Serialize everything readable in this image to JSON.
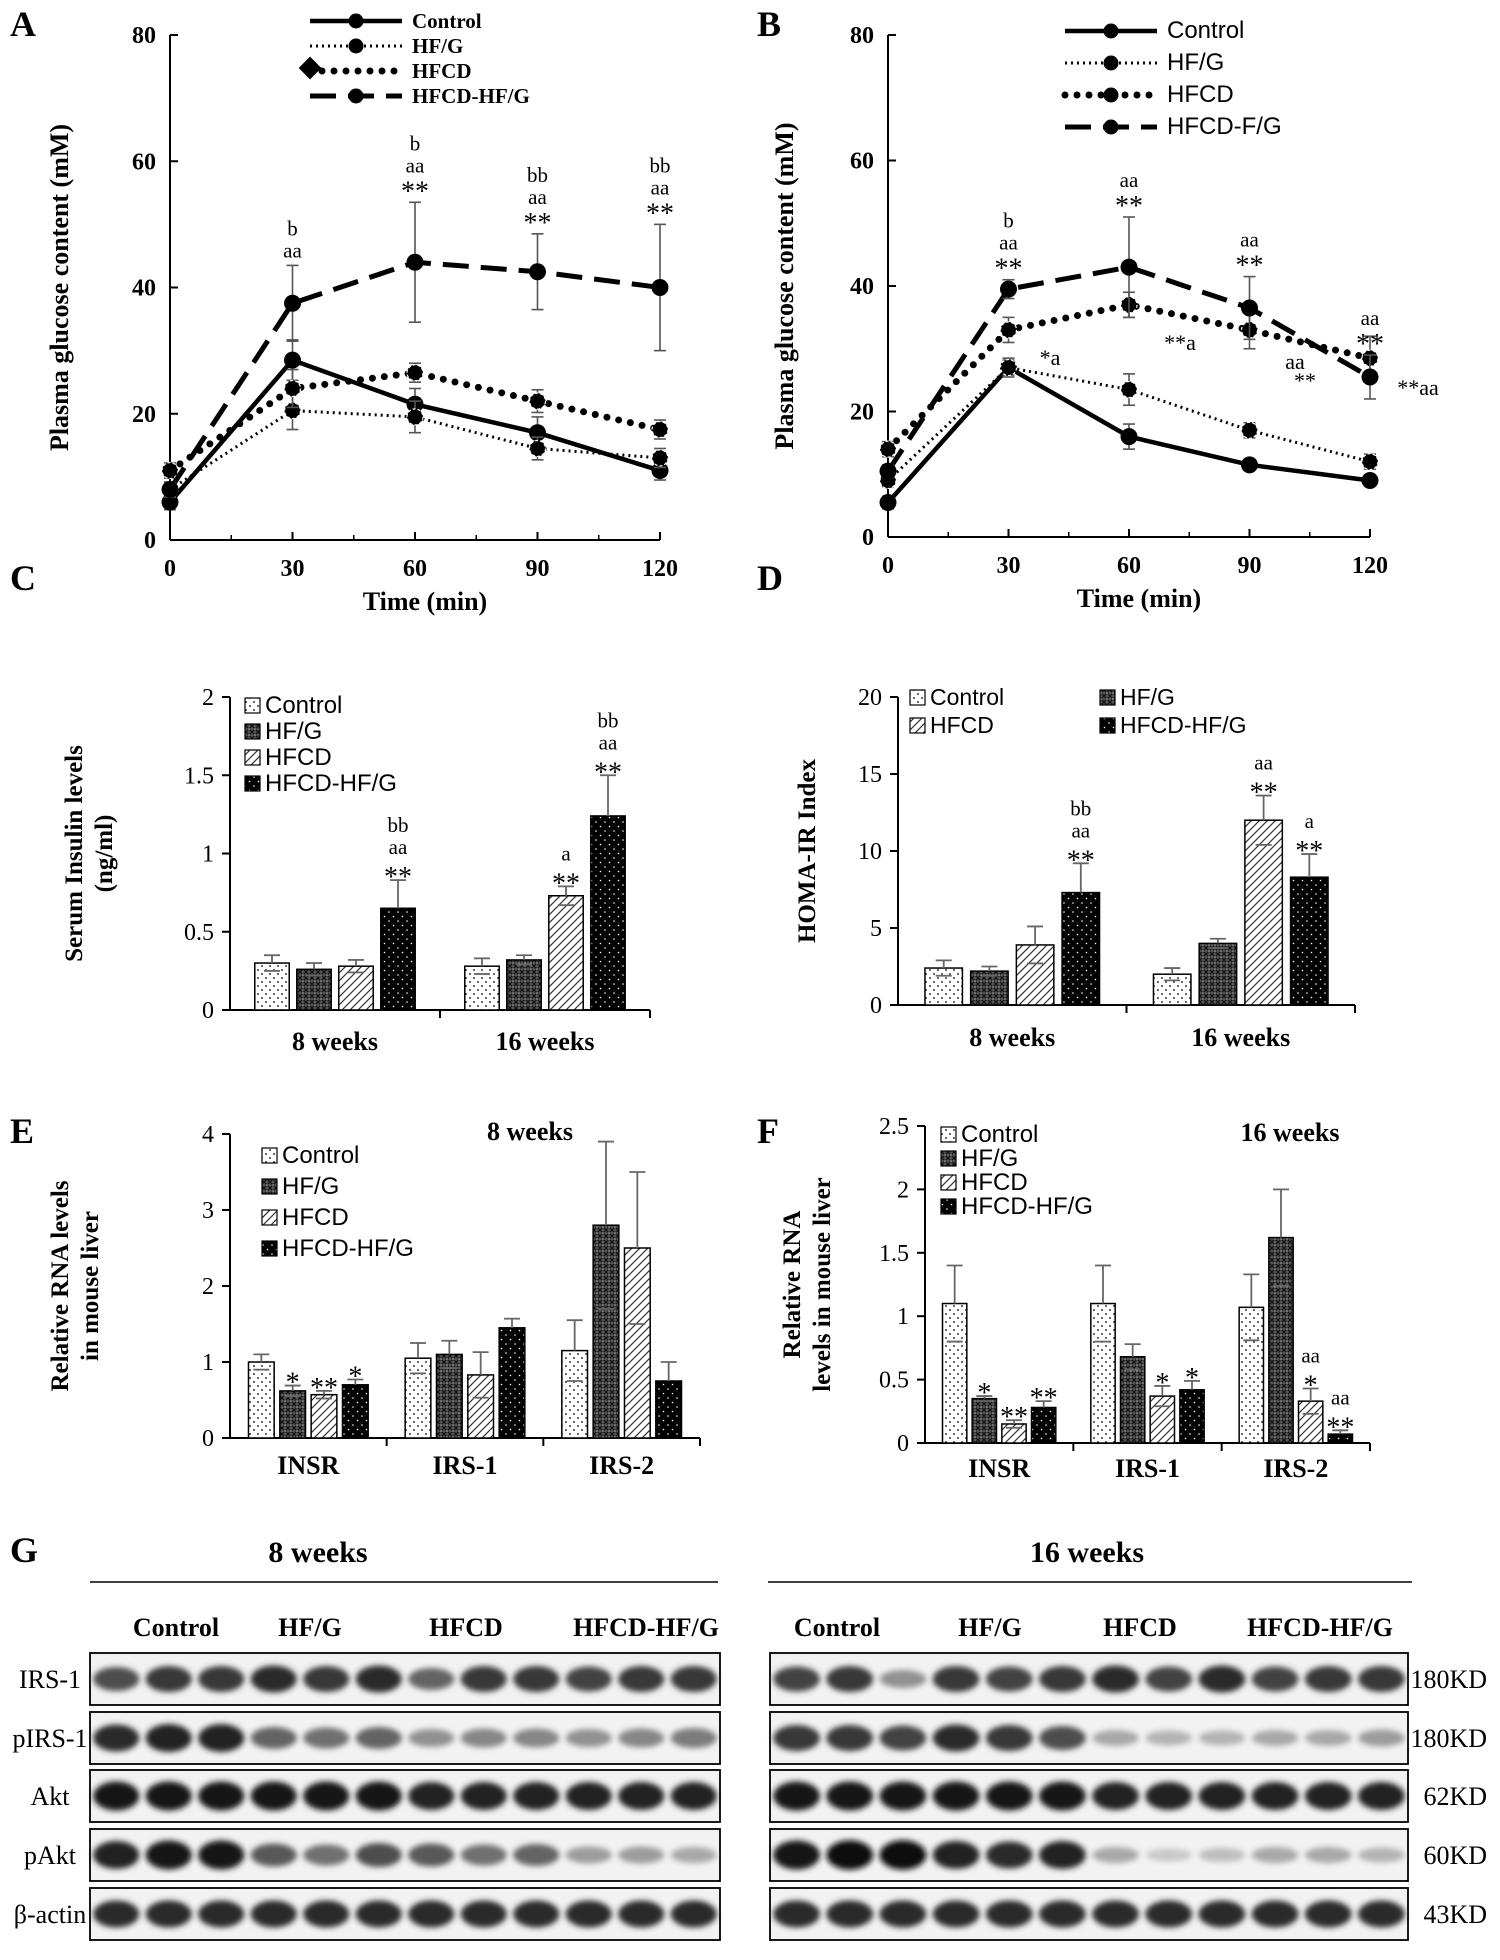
{
  "panel_letters": [
    "A",
    "B",
    "C",
    "D",
    "E",
    "F",
    "G"
  ],
  "chart_data": [
    {
      "panel": "A",
      "type": "line",
      "ylabel": "Plasma glucose content  (mM)",
      "xlabel": "Time (min)",
      "x": [
        0,
        30,
        60,
        90,
        120
      ],
      "xlim": [
        0,
        120
      ],
      "ylim": [
        0,
        80
      ],
      "yticks": [
        0,
        20,
        40,
        60,
        80
      ],
      "legend_position": "top-right",
      "series": [
        {
          "name": "Control",
          "values": [
            6,
            28.5,
            21.5,
            17,
            11
          ],
          "err": [
            1.2,
            3.2,
            2.5,
            2.5,
            1.5
          ],
          "style": "solid"
        },
        {
          "name": "HF/G",
          "values": [
            8,
            20.5,
            19.5,
            14.5,
            13
          ],
          "err": [
            1.2,
            3,
            2.5,
            1.8,
            1.5
          ],
          "style": "dotted"
        },
        {
          "name": "HFCD",
          "values": [
            11,
            24,
            26.5,
            22,
            17.5
          ],
          "err": [
            1.2,
            3,
            1.5,
            1.8,
            1.5
          ],
          "style": "dots"
        },
        {
          "name": "HFCD-HF/G",
          "values": [
            8,
            37.5,
            44,
            42.5,
            40
          ],
          "err": [
            1,
            6,
            9.5,
            6,
            10
          ],
          "style": "dashed"
        }
      ],
      "annotations": [
        {
          "x": 30,
          "lines": [
            "b",
            "aa"
          ]
        },
        {
          "x": 60,
          "lines": [
            "b",
            "aa",
            "**"
          ]
        },
        {
          "x": 90,
          "lines": [
            "bb",
            "aa",
            "**"
          ]
        },
        {
          "x": 120,
          "lines": [
            "bb",
            "aa",
            "**"
          ]
        }
      ]
    },
    {
      "panel": "B",
      "type": "line",
      "ylabel": "Plasma glucose content  (mM)",
      "xlabel": "Time  (min)",
      "x": [
        0,
        30,
        60,
        90,
        120
      ],
      "xlim": [
        0,
        120
      ],
      "ylim": [
        0,
        80
      ],
      "yticks": [
        0,
        20,
        40,
        60,
        80
      ],
      "legend_position": "top-right",
      "series": [
        {
          "name": "Control",
          "values": [
            5.5,
            27,
            16,
            11.5,
            9
          ],
          "err": [
            1,
            1.5,
            2,
            0.8,
            0.8
          ],
          "style": "solid"
        },
        {
          "name": "HF/G",
          "values": [
            9,
            27,
            23.5,
            17,
            12
          ],
          "err": [
            1,
            1.2,
            2.5,
            1.2,
            1.2
          ],
          "style": "dotted"
        },
        {
          "name": "HFCD",
          "values": [
            14,
            33,
            37,
            33,
            28.5
          ],
          "err": [
            1.2,
            2,
            2,
            3,
            3.5
          ],
          "style": "dots"
        },
        {
          "name": "HFCD-F/G",
          "values": [
            10.5,
            39.5,
            43,
            36.5,
            25.5
          ],
          "err": [
            1,
            1.5,
            8,
            5,
            3.5
          ],
          "style": "dashed"
        }
      ],
      "annotations": [
        {
          "x": 30,
          "lines": [
            "b",
            "aa",
            "**"
          ]
        },
        {
          "x": 60,
          "lines": [
            "aa",
            "**"
          ]
        },
        {
          "x": 90,
          "lines": [
            "aa",
            "**"
          ]
        },
        {
          "x": 120,
          "lines": [
            "aa",
            "**"
          ]
        }
      ],
      "side_annotations": [
        "*a",
        "**a",
        "aa",
        "**",
        "**aa"
      ]
    },
    {
      "panel": "C",
      "type": "bar",
      "ylabel": "Serum Insulin levels\n(ng/ml)",
      "categories": [
        "8 weeks",
        "16 weeks"
      ],
      "ylim": [
        0,
        2
      ],
      "yticks": [
        "0",
        "0.5",
        "1",
        "1.5",
        "2"
      ],
      "legend_position": "top-left",
      "series": [
        {
          "name": "Control",
          "values": [
            0.3,
            0.28
          ],
          "err": [
            0.05,
            0.05
          ],
          "fill": "dots"
        },
        {
          "name": "HF/G",
          "values": [
            0.26,
            0.32
          ],
          "err": [
            0.04,
            0.03
          ],
          "fill": "cross"
        },
        {
          "name": "HFCD",
          "values": [
            0.28,
            0.73
          ],
          "err": [
            0.04,
            0.06
          ],
          "fill": "diag"
        },
        {
          "name": "HFCD-HF/G",
          "values": [
            0.65,
            1.24
          ],
          "err": [
            0.18,
            0.26
          ],
          "fill": "dark"
        }
      ],
      "annotations": [
        {
          "series": 3,
          "category": 0,
          "lines": [
            "bb",
            "aa",
            "**"
          ]
        },
        {
          "series": 2,
          "category": 1,
          "lines": [
            "a",
            "**"
          ]
        },
        {
          "series": 3,
          "category": 1,
          "lines": [
            "bb",
            "aa",
            "**"
          ]
        }
      ]
    },
    {
      "panel": "D",
      "type": "bar",
      "ylabel": "HOMA-IR Index",
      "categories": [
        "8 weeks",
        "16 weeks"
      ],
      "ylim": [
        0,
        20
      ],
      "yticks": [
        "0",
        "5",
        "10",
        "15",
        "20"
      ],
      "legend_position": "top",
      "series": [
        {
          "name": "Control",
          "values": [
            2.4,
            2
          ],
          "err": [
            0.5,
            0.4
          ],
          "fill": "dots"
        },
        {
          "name": "HF/G",
          "values": [
            2.2,
            4
          ],
          "err": [
            0.3,
            0.3
          ],
          "fill": "cross"
        },
        {
          "name": "HFCD",
          "values": [
            3.9,
            12
          ],
          "err": [
            1.2,
            1.6
          ],
          "fill": "diag"
        },
        {
          "name": "HFCD-HF/G",
          "values": [
            7.3,
            8.3
          ],
          "err": [
            1.9,
            1.5
          ],
          "fill": "dark"
        }
      ],
      "annotations": [
        {
          "series": 3,
          "category": 0,
          "lines": [
            "bb",
            "aa",
            "**"
          ]
        },
        {
          "series": 2,
          "category": 1,
          "lines": [
            "aa",
            "**"
          ]
        },
        {
          "series": 3,
          "category": 1,
          "lines": [
            "a",
            "**"
          ]
        }
      ]
    },
    {
      "panel": "E",
      "type": "bar",
      "title": "8 weeks",
      "ylabel": "Relative RNA levels\nin mouse liver",
      "categories": [
        "INSR",
        "IRS-1",
        "IRS-2"
      ],
      "ylim": [
        0,
        4
      ],
      "yticks": [
        "0",
        "1",
        "2",
        "3",
        "4"
      ],
      "legend_position": "top-left",
      "series": [
        {
          "name": "Control",
          "values": [
            1,
            1.05,
            1.15
          ],
          "err": [
            0.1,
            0.2,
            0.4
          ],
          "fill": "dots"
        },
        {
          "name": "HF/G",
          "values": [
            0.62,
            1.1,
            2.8
          ],
          "err": [
            0.07,
            0.18,
            1.1
          ],
          "fill": "cross"
        },
        {
          "name": "HFCD",
          "values": [
            0.57,
            0.83,
            2.5
          ],
          "err": [
            0.05,
            0.3,
            1.0
          ],
          "fill": "diag"
        },
        {
          "name": "HFCD-HF/G",
          "values": [
            0.7,
            1.45,
            0.75
          ],
          "err": [
            0.07,
            0.12,
            0.25
          ],
          "fill": "dark"
        }
      ],
      "annotations": [
        {
          "series": 1,
          "category": 0,
          "lines": [
            "*"
          ]
        },
        {
          "series": 2,
          "category": 0,
          "lines": [
            "**"
          ]
        },
        {
          "series": 3,
          "category": 0,
          "lines": [
            "*"
          ]
        }
      ]
    },
    {
      "panel": "F",
      "type": "bar",
      "title": "16 weeks",
      "ylabel": "Relative RNA\nlevels in mouse liver",
      "categories": [
        "INSR",
        "IRS-1",
        "IRS-2"
      ],
      "ylim": [
        0,
        2.5
      ],
      "yticks": [
        "0",
        "0.5",
        "1",
        "1.5",
        "2",
        "2.5"
      ],
      "legend_position": "top-left",
      "series": [
        {
          "name": "Control",
          "values": [
            1.1,
            1.1,
            1.07
          ],
          "err": [
            0.3,
            0.3,
            0.26
          ],
          "fill": "dots"
        },
        {
          "name": "HF/G",
          "values": [
            0.35,
            0.68,
            1.62
          ],
          "err": [
            0.02,
            0.1,
            0.38
          ],
          "fill": "cross"
        },
        {
          "name": "HFCD",
          "values": [
            0.15,
            0.37,
            0.33
          ],
          "err": [
            0.03,
            0.08,
            0.1
          ],
          "fill": "diag"
        },
        {
          "name": "HFCD-HF/G",
          "values": [
            0.28,
            0.42,
            0.07
          ],
          "err": [
            0.05,
            0.07,
            0.03
          ],
          "fill": "dark"
        }
      ],
      "annotations": [
        {
          "series": 1,
          "category": 0,
          "lines": [
            "*"
          ]
        },
        {
          "series": 2,
          "category": 0,
          "lines": [
            "**"
          ]
        },
        {
          "series": 3,
          "category": 0,
          "lines": [
            "**"
          ]
        },
        {
          "series": 2,
          "category": 1,
          "lines": [
            "*"
          ]
        },
        {
          "series": 3,
          "category": 1,
          "lines": [
            "*"
          ]
        },
        {
          "series": 2,
          "category": 2,
          "lines": [
            "aa",
            "*"
          ]
        },
        {
          "series": 3,
          "category": 2,
          "lines": [
            "aa",
            "**"
          ]
        }
      ]
    }
  ],
  "western_blot": {
    "panel": "G",
    "groups_8w": {
      "title": "8 weeks",
      "labels": [
        "Control",
        "HF/G",
        "HFCD",
        "HFCD-HF/G"
      ]
    },
    "groups_16w": {
      "title": "16 weeks",
      "labels": [
        "Control",
        "HF/G",
        "HFCD",
        "HFCD-HF/G"
      ]
    },
    "row_labels": [
      "IRS-1",
      "pIRS-1",
      "Akt",
      "pAkt",
      "β-actin"
    ],
    "sizes": [
      "180KD",
      "180KD",
      "62KD",
      "60KD",
      "43KD"
    ],
    "intensity_8w": [
      [
        0.7,
        0.8,
        0.8,
        0.85,
        0.8,
        0.85,
        0.6,
        0.8,
        0.8,
        0.75,
        0.8,
        0.8
      ],
      [
        0.85,
        0.9,
        0.9,
        0.6,
        0.55,
        0.6,
        0.4,
        0.45,
        0.45,
        0.4,
        0.45,
        0.5
      ],
      [
        0.95,
        0.95,
        0.95,
        0.95,
        0.95,
        0.95,
        0.9,
        0.9,
        0.9,
        0.9,
        0.9,
        0.9
      ],
      [
        0.9,
        0.95,
        0.95,
        0.65,
        0.55,
        0.7,
        0.65,
        0.55,
        0.6,
        0.35,
        0.35,
        0.3
      ],
      [
        0.85,
        0.85,
        0.85,
        0.85,
        0.85,
        0.85,
        0.85,
        0.85,
        0.85,
        0.85,
        0.85,
        0.85
      ]
    ],
    "intensity_16w": [
      [
        0.75,
        0.8,
        0.4,
        0.8,
        0.75,
        0.8,
        0.85,
        0.75,
        0.85,
        0.75,
        0.8,
        0.8
      ],
      [
        0.8,
        0.8,
        0.75,
        0.85,
        0.8,
        0.7,
        0.3,
        0.25,
        0.25,
        0.3,
        0.3,
        0.35
      ],
      [
        0.95,
        0.95,
        0.95,
        0.95,
        0.95,
        0.95,
        0.9,
        0.9,
        0.9,
        0.9,
        0.9,
        0.9
      ],
      [
        0.95,
        0.97,
        0.97,
        0.9,
        0.85,
        0.9,
        0.3,
        0.15,
        0.2,
        0.3,
        0.3,
        0.25
      ],
      [
        0.85,
        0.85,
        0.85,
        0.85,
        0.85,
        0.85,
        0.85,
        0.85,
        0.85,
        0.85,
        0.85,
        0.85
      ]
    ]
  }
}
